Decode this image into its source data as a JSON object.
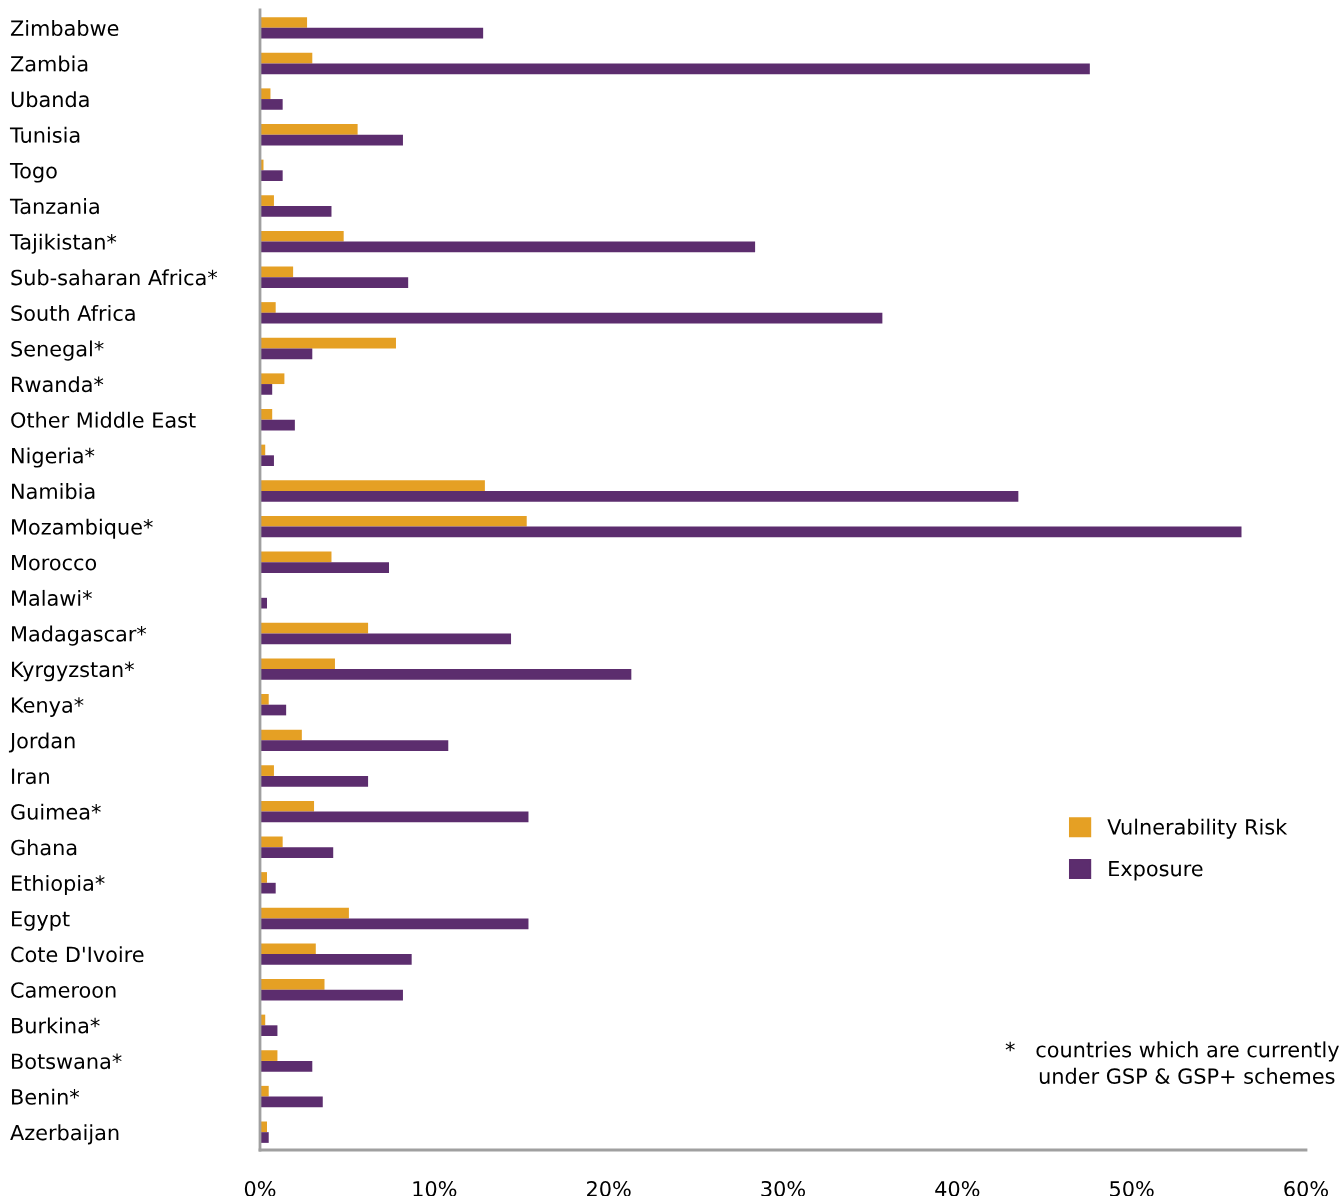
{
  "chart_data": {
    "type": "bar",
    "orientation": "horizontal",
    "categories": [
      "Zimbabwe",
      "Zambia",
      "Ubanda",
      "Tunisia",
      "Togo",
      "Tanzania",
      "Tajikistan*",
      "Sub-saharan Africa*",
      "South Africa",
      "Senegal*",
      "Rwanda*",
      "Other Middle East",
      "Nigeria*",
      "Namibia",
      "Mozambique*",
      "Morocco",
      "Malawi*",
      "Madagascar*",
      "Kyrgyzstan*",
      "Kenya*",
      "Jordan",
      "Iran",
      "Guimea*",
      "Ghana",
      "Ethiopia*",
      "Egypt",
      "Cote D'Ivoire",
      "Cameroon",
      "Burkina*",
      "Botswana*",
      "Benin*",
      "Azerbaijan"
    ],
    "series": [
      {
        "name": "Vulnerability Risk",
        "color": "#e5a024",
        "values": [
          2.7,
          3.0,
          0.6,
          5.6,
          0.2,
          0.8,
          4.8,
          1.9,
          0.9,
          7.8,
          1.4,
          0.7,
          0.3,
          12.9,
          15.3,
          4.1,
          0,
          6.2,
          4.3,
          0.5,
          2.4,
          0.8,
          3.1,
          1.3,
          0.4,
          5.1,
          3.2,
          3.7,
          0.3,
          1.0,
          0.5,
          0.4
        ]
      },
      {
        "name": "Exposure",
        "color": "#5c2d6e",
        "values": [
          12.8,
          47.6,
          1.3,
          8.2,
          1.3,
          4.1,
          28.4,
          8.5,
          35.7,
          3.0,
          0.7,
          2.0,
          0.8,
          43.5,
          56.3,
          7.4,
          0.4,
          14.4,
          21.3,
          1.5,
          10.8,
          6.2,
          15.4,
          4.2,
          0.9,
          15.4,
          8.7,
          8.2,
          1.0,
          3.0,
          3.6,
          0.5
        ]
      }
    ],
    "xlim": [
      0,
      60
    ],
    "xticks": [
      {
        "value": 0,
        "label": "0%"
      },
      {
        "value": 10,
        "label": "10%"
      },
      {
        "value": 20,
        "label": "20%"
      },
      {
        "value": 30,
        "label": "30%"
      },
      {
        "value": 40,
        "label": "40%"
      },
      {
        "value": 50,
        "label": "50%"
      },
      {
        "value": 60,
        "label": "60%"
      }
    ],
    "grid": false,
    "legend": "bottom right",
    "annotations": [
      "*   countries which are currently\n     under GSP & GSP+ schemes"
    ]
  }
}
